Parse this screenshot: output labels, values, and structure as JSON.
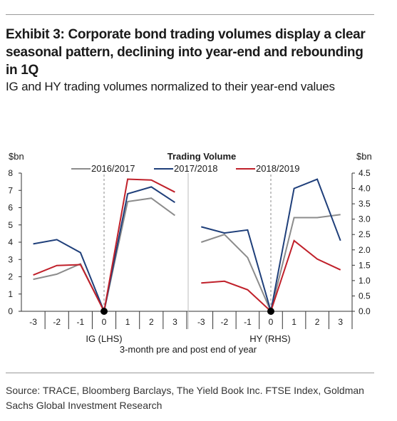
{
  "exhibit": {
    "title": "Exhibit 3: Corporate bond trading volumes display a clear seasonal pattern, declining into year-end and rebounding in 1Q",
    "subtitle": "IG and HY trading volumes normalized to their year-end values",
    "source": "Source: TRACE, Bloomberg Barclays, The Yield Book Inc. FTSE Index, Goldman Sachs Global Investment Research"
  },
  "chart_data": {
    "type": "line",
    "title": "Trading Volume",
    "xlabel": "3-month pre and post end of year",
    "legend": [
      "2016/2017",
      "2017/2018",
      "2018/2019"
    ],
    "colors": {
      "2016/2017": "#8c8c8c",
      "2017/2018": "#1f3f7a",
      "2018/2019": "#c0202a"
    },
    "panels": [
      {
        "name": "IG (LHS)",
        "axis_unit": "$bn",
        "axis_side": "left",
        "ylim": [
          0,
          8
        ],
        "yticks": [
          "0",
          "1",
          "2",
          "3",
          "4",
          "5",
          "6",
          "7",
          "8"
        ],
        "x": [
          -3,
          -2,
          -1,
          0,
          1,
          2,
          3
        ],
        "xticks": [
          "-3",
          "-2",
          "-1",
          "0",
          "1",
          "2",
          "3"
        ],
        "series": [
          {
            "name": "2016/2017",
            "values": [
              1.85,
              2.15,
              2.75,
              0,
              6.35,
              6.55,
              5.55
            ]
          },
          {
            "name": "2017/2018",
            "values": [
              3.9,
              4.15,
              3.4,
              0,
              6.8,
              7.2,
              6.3
            ]
          },
          {
            "name": "2018/2019",
            "values": [
              2.1,
              2.65,
              2.7,
              0,
              7.65,
              7.6,
              6.9
            ]
          }
        ]
      },
      {
        "name": "HY (RHS)",
        "axis_unit": "$bn",
        "axis_side": "right",
        "ylim": [
          0,
          4.5
        ],
        "yticks": [
          "0.0",
          "0.5",
          "1.0",
          "1.5",
          "2.0",
          "2.5",
          "3.0",
          "3.5",
          "4.0",
          "4.5"
        ],
        "x": [
          -3,
          -2,
          -1,
          0,
          1,
          2,
          3
        ],
        "xticks": [
          "-3",
          "-2",
          "-1",
          "0",
          "1",
          "2",
          "3"
        ],
        "series": [
          {
            "name": "2016/2017",
            "values": [
              2.25,
              2.5,
              1.75,
              0,
              3.05,
              3.05,
              3.15
            ]
          },
          {
            "name": "2017/2018",
            "values": [
              2.75,
              2.55,
              2.65,
              0,
              4.0,
              4.3,
              2.3
            ]
          },
          {
            "name": "2018/2019",
            "values": [
              0.92,
              0.98,
              0.7,
              0,
              2.3,
              1.7,
              1.35
            ]
          }
        ]
      }
    ]
  }
}
